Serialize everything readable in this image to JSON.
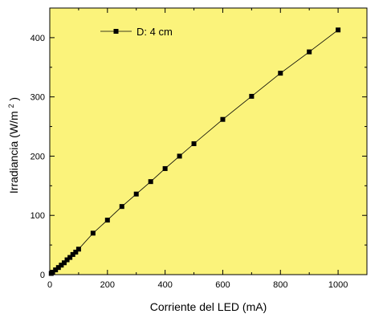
{
  "chart_data": {
    "type": "line",
    "xlabel": "Corriente del LED (mA)",
    "ylabel_prefix": "Irradiancia (W/m",
    "ylabel_superscript": "2",
    "ylabel_suffix": ")",
    "xlim": [
      0,
      1100
    ],
    "ylim": [
      0,
      450
    ],
    "xticks": [
      0,
      200,
      400,
      600,
      800,
      1000
    ],
    "yticks": [
      0,
      100,
      200,
      300,
      400
    ],
    "x_minor_step": 100,
    "y_minor_step": 50,
    "grid": false,
    "legend_position": "top-left",
    "background_color": "#fbf37b",
    "line_color": "#000000",
    "marker": "square",
    "series": [
      {
        "name": "D: 4 cm",
        "x": [
          5,
          10,
          20,
          30,
          40,
          50,
          60,
          70,
          80,
          90,
          100,
          150,
          200,
          250,
          300,
          350,
          400,
          450,
          500,
          600,
          700,
          800,
          900,
          1000
        ],
        "y": [
          2,
          4,
          8,
          12,
          16,
          20,
          25,
          29,
          34,
          38,
          43,
          70,
          92,
          115,
          136,
          157,
          179,
          200,
          221,
          262,
          301,
          340,
          376,
          413
        ]
      }
    ]
  }
}
